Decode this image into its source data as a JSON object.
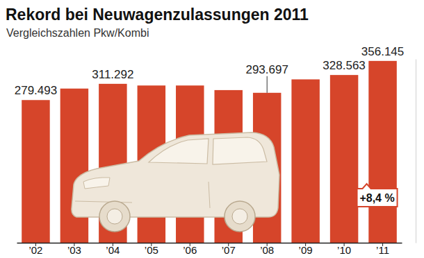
{
  "chart_data": {
    "type": "bar",
    "title": "Rekord bei Neuwagenzulassungen 2011",
    "subtitle": "Vergleichszahlen Pkw/Kombi",
    "categories": [
      "’02",
      "’03",
      "’04",
      "’05",
      "’06",
      "’07",
      "’08",
      "’09",
      "’10",
      "’11"
    ],
    "values": [
      279493,
      302000,
      311292,
      308000,
      308000,
      299000,
      293697,
      320000,
      328563,
      356145
    ],
    "value_labels": [
      "279.493",
      null,
      "311.292",
      null,
      null,
      null,
      "293.697",
      null,
      "328.563",
      "356.145"
    ],
    "data_labels": true,
    "color": "#d6452a",
    "ylim": [
      0,
      360000
    ],
    "grid": false,
    "tick_labels": "x",
    "annotation": "+8,4 %"
  }
}
